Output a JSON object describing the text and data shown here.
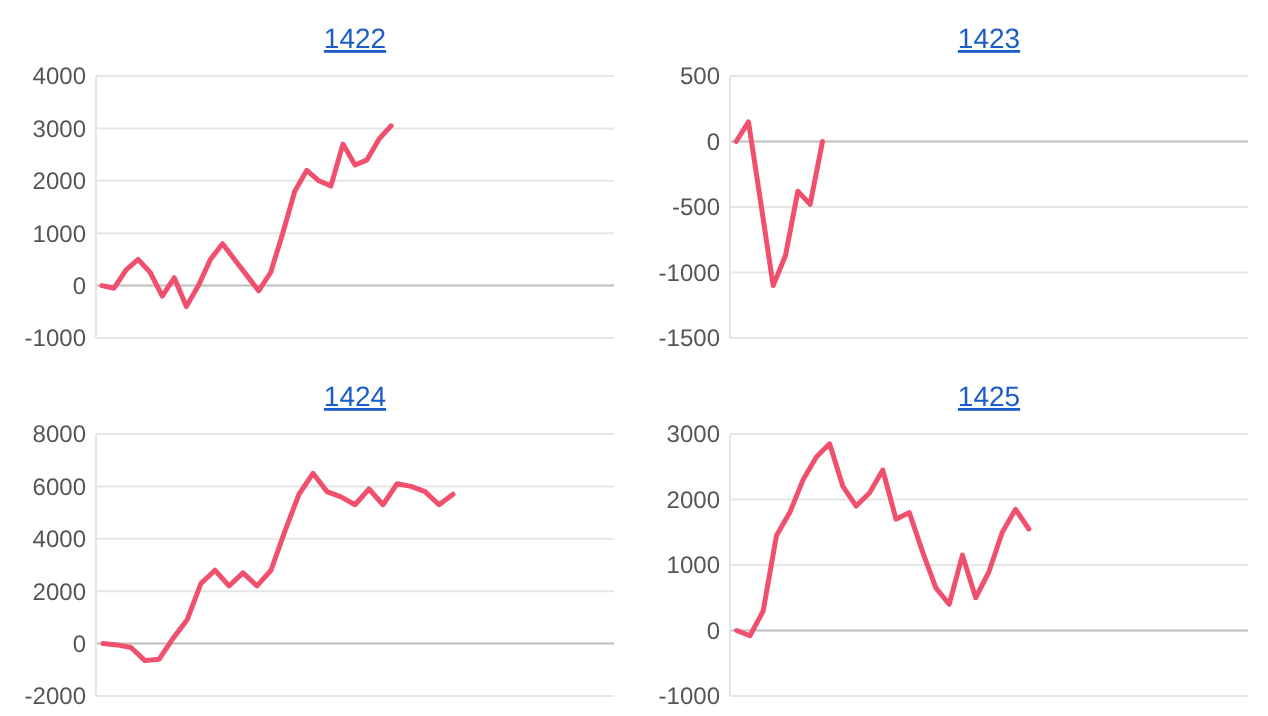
{
  "chart_data": [
    {
      "type": "line",
      "title": "1422",
      "categories": [
        null,
        null,
        null,
        null,
        null,
        null,
        null,
        null,
        null,
        null,
        null,
        null,
        null,
        null,
        null,
        null,
        null,
        null,
        null,
        null,
        null,
        null,
        null,
        null,
        null,
        null,
        null,
        null,
        null,
        null,
        null,
        null,
        null,
        null,
        null,
        null,
        null,
        null,
        null,
        null,
        null,
        null,
        null
      ],
      "series": [
        {
          "color": "#f0506e",
          "values": [
            0,
            -50,
            300,
            500,
            250,
            -200,
            150,
            -400,
            0,
            500,
            800,
            500,
            200,
            -100,
            250,
            1000,
            1800,
            2200,
            2000,
            1900,
            2700,
            2300,
            2400,
            2800,
            3050,
            null,
            null,
            null,
            null,
            null,
            null,
            null,
            null,
            null,
            null,
            null,
            null,
            null,
            null,
            null,
            null,
            null,
            null
          ]
        }
      ],
      "ylim": [
        -1000,
        4000
      ],
      "yticks": [
        -1000,
        0,
        1000,
        2000,
        3000,
        4000
      ],
      "grid": "y",
      "tick_labels": "y",
      "marker": "none"
    },
    {
      "type": "line",
      "title": "1423",
      "categories": [
        null,
        null,
        null,
        null,
        null,
        null,
        null,
        null,
        null,
        null,
        null,
        null,
        null,
        null,
        null,
        null,
        null,
        null,
        null,
        null,
        null,
        null,
        null,
        null,
        null,
        null,
        null,
        null,
        null,
        null,
        null,
        null,
        null,
        null,
        null,
        null,
        null,
        null,
        null,
        null,
        null,
        null
      ],
      "series": [
        {
          "color": "#f0506e",
          "values": [
            0,
            150,
            -470,
            -1100,
            -870,
            -380,
            -480,
            0,
            null,
            null,
            null,
            null,
            null,
            null,
            null,
            null,
            null,
            null,
            null,
            null,
            null,
            null,
            null,
            null,
            null,
            null,
            null,
            null,
            null,
            null,
            null,
            null,
            null,
            null,
            null,
            null,
            null,
            null,
            null,
            null,
            null,
            null
          ]
        }
      ],
      "ylim": [
        -1500,
        500
      ],
      "yticks": [
        -1500,
        -1000,
        -500,
        0,
        500
      ],
      "grid": "y",
      "tick_labels": "y",
      "marker": "none"
    },
    {
      "type": "line",
      "title": "1424",
      "categories": [
        null,
        null,
        null,
        null,
        null,
        null,
        null,
        null,
        null,
        null,
        null,
        null,
        null,
        null,
        null,
        null,
        null,
        null,
        null,
        null,
        null,
        null,
        null,
        null,
        null,
        null,
        null,
        null,
        null,
        null,
        null,
        null,
        null,
        null,
        null,
        null,
        null
      ],
      "series": [
        {
          "color": "#f0506e",
          "values": [
            0,
            -50,
            -150,
            -650,
            -600,
            200,
            900,
            2300,
            2800,
            2200,
            2700,
            2200,
            2800,
            4300,
            5700,
            6500,
            5800,
            5600,
            5300,
            5900,
            5300,
            6100,
            6000,
            5800,
            5300,
            5700,
            null,
            null,
            null,
            null,
            null,
            null,
            null,
            null,
            null,
            null,
            null
          ]
        }
      ],
      "ylim": [
        -2000,
        8000
      ],
      "yticks": [
        -2000,
        0,
        2000,
        4000,
        6000,
        8000
      ],
      "grid": "y",
      "tick_labels": "y",
      "marker": "none"
    },
    {
      "type": "line",
      "title": "1425",
      "categories": [
        null,
        null,
        null,
        null,
        null,
        null,
        null,
        null,
        null,
        null,
        null,
        null,
        null,
        null,
        null,
        null,
        null,
        null,
        null,
        null,
        null,
        null,
        null,
        null,
        null,
        null,
        null,
        null,
        null,
        null,
        null,
        null,
        null,
        null,
        null,
        null,
        null,
        null,
        null
      ],
      "series": [
        {
          "color": "#f0506e",
          "values": [
            0,
            -80,
            300,
            1450,
            1800,
            2300,
            2650,
            2850,
            2200,
            1900,
            2100,
            2450,
            1700,
            1800,
            1200,
            650,
            400,
            1150,
            500,
            900,
            1500,
            1850,
            1550,
            null,
            null,
            null,
            null,
            null,
            null,
            null,
            null,
            null,
            null,
            null,
            null,
            null,
            null,
            null,
            null
          ]
        }
      ],
      "ylim": [
        -1000,
        3000
      ],
      "yticks": [
        -1000,
        0,
        1000,
        2000,
        3000
      ],
      "grid": "y",
      "tick_labels": "y",
      "marker": "none"
    }
  ]
}
